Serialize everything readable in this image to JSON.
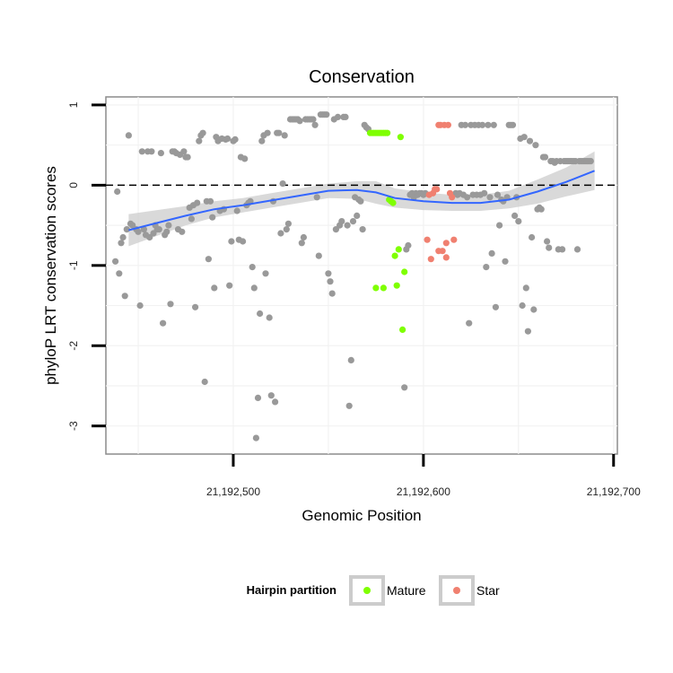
{
  "chart_data": {
    "type": "scatter",
    "title": "Conservation",
    "xlabel": "Genomic Position",
    "ylabel": "phyloP LRT conservation scores",
    "xlim": [
      21192433,
      21192702
    ],
    "ylim": [
      -3.35,
      1.1
    ],
    "x_ticks": [
      {
        "value": 21192500,
        "label": "21,192,500"
      },
      {
        "value": 21192600,
        "label": "21,192,600"
      },
      {
        "value": 21192700,
        "label": "21,192,700"
      }
    ],
    "y_ticks": [
      {
        "value": 1,
        "label": "1"
      },
      {
        "value": 0,
        "label": "0"
      },
      {
        "value": -1,
        "label": "-1"
      },
      {
        "value": -2,
        "label": "-2"
      },
      {
        "value": -3,
        "label": "-3"
      }
    ],
    "reference_line": {
      "y": 0,
      "style": "dashed"
    },
    "grid": true,
    "legend": {
      "title": "Hairpin partition",
      "position": "bottom",
      "entries": [
        {
          "label": "Mature",
          "color": "#7fff00"
        },
        {
          "label": "Star",
          "color": "#f08070"
        }
      ]
    },
    "colors": {
      "other": "#999999",
      "Mature": "#7fff00",
      "Star": "#f08070",
      "smooth_line": "#3366ff",
      "band": "#cccccc"
    },
    "series": [
      {
        "role": "other",
        "points": [
          [
            21192438,
            -0.95
          ],
          [
            21192439,
            -0.08
          ],
          [
            21192440,
            -1.1
          ],
          [
            21192441,
            -0.72
          ],
          [
            21192442,
            -0.65
          ],
          [
            21192443,
            -1.38
          ],
          [
            21192444,
            -0.55
          ],
          [
            21192445,
            0.62
          ],
          [
            21192446,
            -0.48
          ],
          [
            21192447,
            -0.5
          ],
          [
            21192449,
            -0.55
          ],
          [
            21192450,
            -0.58
          ],
          [
            21192451,
            -1.5
          ],
          [
            21192452,
            0.42
          ],
          [
            21192453,
            -0.55
          ],
          [
            21192454,
            -0.62
          ],
          [
            21192455,
            0.42
          ],
          [
            21192456,
            -0.65
          ],
          [
            21192457,
            0.42
          ],
          [
            21192458,
            -0.6
          ],
          [
            21192459,
            -0.5
          ],
          [
            21192460,
            -0.55
          ],
          [
            21192461,
            -0.55
          ],
          [
            21192462,
            0.4
          ],
          [
            21192463,
            -1.72
          ],
          [
            21192464,
            -0.62
          ],
          [
            21192465,
            -0.58
          ],
          [
            21192466,
            -0.5
          ],
          [
            21192467,
            -1.48
          ],
          [
            21192468,
            0.42
          ],
          [
            21192469,
            0.42
          ],
          [
            21192470,
            0.4
          ],
          [
            21192471,
            -0.55
          ],
          [
            21192472,
            0.38
          ],
          [
            21192473,
            -0.58
          ],
          [
            21192474,
            0.42
          ],
          [
            21192475,
            0.35
          ],
          [
            21192476,
            0.35
          ],
          [
            21192477,
            -0.28
          ],
          [
            21192478,
            -0.42
          ],
          [
            21192479,
            -0.25
          ],
          [
            21192480,
            -1.52
          ],
          [
            21192481,
            -0.22
          ],
          [
            21192482,
            0.55
          ],
          [
            21192483,
            0.62
          ],
          [
            21192484,
            0.65
          ],
          [
            21192485,
            -2.45
          ],
          [
            21192486,
            -0.2
          ],
          [
            21192487,
            -0.92
          ],
          [
            21192488,
            -0.2
          ],
          [
            21192489,
            -0.4
          ],
          [
            21192490,
            -1.28
          ],
          [
            21192491,
            0.6
          ],
          [
            21192492,
            0.55
          ],
          [
            21192493,
            -0.32
          ],
          [
            21192494,
            0.58
          ],
          [
            21192495,
            -0.3
          ],
          [
            21192496,
            0.57
          ],
          [
            21192497,
            0.58
          ],
          [
            21192498,
            -1.25
          ],
          [
            21192499,
            -0.7
          ],
          [
            21192500,
            0.55
          ],
          [
            21192501,
            0.57
          ],
          [
            21192502,
            -0.32
          ],
          [
            21192503,
            -0.68
          ],
          [
            21192504,
            0.35
          ],
          [
            21192505,
            -0.7
          ],
          [
            21192506,
            0.33
          ],
          [
            21192507,
            -0.25
          ],
          [
            21192508,
            -0.22
          ],
          [
            21192509,
            -0.2
          ],
          [
            21192510,
            -1.02
          ],
          [
            21192511,
            -1.28
          ],
          [
            21192512,
            -3.15
          ],
          [
            21192513,
            -2.65
          ],
          [
            21192514,
            -1.6
          ],
          [
            21192515,
            0.55
          ],
          [
            21192516,
            0.62
          ],
          [
            21192517,
            -1.1
          ],
          [
            21192518,
            0.65
          ],
          [
            21192519,
            -1.65
          ],
          [
            21192520,
            -2.62
          ],
          [
            21192521,
            -0.2
          ],
          [
            21192522,
            -2.7
          ],
          [
            21192523,
            0.65
          ],
          [
            21192524,
            0.65
          ],
          [
            21192525,
            -0.6
          ],
          [
            21192526,
            0.02
          ],
          [
            21192527,
            0.62
          ],
          [
            21192528,
            -0.55
          ],
          [
            21192529,
            -0.48
          ],
          [
            21192530,
            0.82
          ],
          [
            21192531,
            0.82
          ],
          [
            21192532,
            0.82
          ],
          [
            21192533,
            0.82
          ],
          [
            21192534,
            0.82
          ],
          [
            21192535,
            0.8
          ],
          [
            21192536,
            -0.72
          ],
          [
            21192537,
            -0.65
          ],
          [
            21192538,
            0.82
          ],
          [
            21192539,
            0.82
          ],
          [
            21192540,
            0.82
          ],
          [
            21192541,
            0.82
          ],
          [
            21192542,
            0.82
          ],
          [
            21192543,
            0.75
          ],
          [
            21192544,
            -0.15
          ],
          [
            21192545,
            -0.88
          ],
          [
            21192546,
            0.88
          ],
          [
            21192547,
            0.88
          ],
          [
            21192548,
            0.88
          ],
          [
            21192549,
            0.88
          ],
          [
            21192550,
            -1.1
          ],
          [
            21192551,
            -1.2
          ],
          [
            21192552,
            -1.35
          ],
          [
            21192553,
            0.82
          ],
          [
            21192554,
            -0.55
          ],
          [
            21192555,
            0.85
          ],
          [
            21192556,
            -0.5
          ],
          [
            21192557,
            -0.45
          ],
          [
            21192558,
            0.85
          ],
          [
            21192559,
            0.85
          ],
          [
            21192560,
            -0.5
          ],
          [
            21192561,
            -2.75
          ],
          [
            21192562,
            -2.18
          ],
          [
            21192563,
            -0.45
          ],
          [
            21192564,
            -0.15
          ],
          [
            21192565,
            -0.38
          ],
          [
            21192566,
            -0.18
          ],
          [
            21192567,
            -0.2
          ],
          [
            21192568,
            -0.55
          ],
          [
            21192569,
            0.75
          ],
          [
            21192570,
            0.72
          ],
          [
            21192571,
            0.7
          ],
          [
            21192590,
            -2.52
          ],
          [
            21192591,
            -0.8
          ],
          [
            21192592,
            -0.75
          ],
          [
            21192593,
            -0.12
          ],
          [
            21192594,
            -0.1
          ],
          [
            21192595,
            -0.15
          ],
          [
            21192596,
            -0.1
          ],
          [
            21192597,
            -0.12
          ],
          [
            21192598,
            -0.1
          ],
          [
            21192599,
            -0.1
          ],
          [
            21192600,
            -0.12
          ],
          [
            21192601,
            -0.1
          ],
          [
            21192617,
            -0.1
          ],
          [
            21192618,
            -0.12
          ],
          [
            21192619,
            -0.1
          ],
          [
            21192620,
            0.75
          ],
          [
            21192621,
            -0.12
          ],
          [
            21192622,
            0.75
          ],
          [
            21192623,
            -0.15
          ],
          [
            21192624,
            -1.72
          ],
          [
            21192625,
            0.75
          ],
          [
            21192626,
            -0.12
          ],
          [
            21192627,
            0.75
          ],
          [
            21192628,
            -0.12
          ],
          [
            21192629,
            0.75
          ],
          [
            21192630,
            -0.12
          ],
          [
            21192631,
            0.75
          ],
          [
            21192632,
            -0.1
          ],
          [
            21192633,
            -1.02
          ],
          [
            21192634,
            0.75
          ],
          [
            21192635,
            -0.15
          ],
          [
            21192636,
            -0.85
          ],
          [
            21192637,
            0.75
          ],
          [
            21192638,
            -1.52
          ],
          [
            21192639,
            -0.12
          ],
          [
            21192640,
            -0.5
          ],
          [
            21192641,
            -0.18
          ],
          [
            21192642,
            -0.2
          ],
          [
            21192643,
            -0.95
          ],
          [
            21192644,
            -0.15
          ],
          [
            21192645,
            0.75
          ],
          [
            21192646,
            0.75
          ],
          [
            21192647,
            0.75
          ],
          [
            21192648,
            -0.38
          ],
          [
            21192649,
            -0.15
          ],
          [
            21192650,
            -0.45
          ],
          [
            21192651,
            0.58
          ],
          [
            21192652,
            -1.5
          ],
          [
            21192653,
            0.6
          ],
          [
            21192654,
            -1.28
          ],
          [
            21192655,
            -1.82
          ],
          [
            21192656,
            0.55
          ],
          [
            21192657,
            -0.65
          ],
          [
            21192658,
            -1.55
          ],
          [
            21192659,
            0.5
          ],
          [
            21192660,
            -0.3
          ],
          [
            21192661,
            -0.28
          ],
          [
            21192662,
            -0.3
          ],
          [
            21192663,
            0.35
          ],
          [
            21192664,
            0.35
          ],
          [
            21192665,
            -0.7
          ],
          [
            21192666,
            -0.78
          ],
          [
            21192667,
            0.3
          ],
          [
            21192668,
            0.3
          ],
          [
            21192669,
            0.28
          ],
          [
            21192670,
            0.3
          ],
          [
            21192671,
            -0.8
          ],
          [
            21192672,
            0.3
          ],
          [
            21192673,
            -0.8
          ],
          [
            21192674,
            0.3
          ],
          [
            21192675,
            0.3
          ],
          [
            21192676,
            0.3
          ],
          [
            21192677,
            0.3
          ],
          [
            21192678,
            0.3
          ],
          [
            21192679,
            0.3
          ],
          [
            21192680,
            0.3
          ],
          [
            21192681,
            -0.8
          ],
          [
            21192682,
            0.3
          ],
          [
            21192683,
            0.3
          ],
          [
            21192684,
            0.3
          ],
          [
            21192685,
            0.3
          ],
          [
            21192686,
            0.3
          ],
          [
            21192687,
            0.3
          ],
          [
            21192688,
            0.3
          ]
        ]
      },
      {
        "role": "Mature",
        "name": "Mature",
        "points": [
          [
            21192572,
            0.65
          ],
          [
            21192573,
            0.65
          ],
          [
            21192574,
            0.65
          ],
          [
            21192575,
            0.65
          ],
          [
            21192576,
            0.65
          ],
          [
            21192577,
            0.65
          ],
          [
            21192578,
            0.65
          ],
          [
            21192579,
            0.65
          ],
          [
            21192580,
            0.65
          ],
          [
            21192581,
            0.65
          ],
          [
            21192582,
            -0.18
          ],
          [
            21192583,
            -0.2
          ],
          [
            21192584,
            -0.22
          ],
          [
            21192585,
            -0.88
          ],
          [
            21192586,
            -1.25
          ],
          [
            21192587,
            -0.8
          ],
          [
            21192588,
            0.6
          ],
          [
            21192589,
            -1.8
          ],
          [
            21192590,
            -1.08
          ],
          [
            21192575,
            -1.28
          ],
          [
            21192579,
            -1.28
          ]
        ]
      },
      {
        "role": "Star",
        "name": "Star",
        "points": [
          [
            21192602,
            -0.68
          ],
          [
            21192603,
            -0.12
          ],
          [
            21192604,
            -0.92
          ],
          [
            21192605,
            -0.1
          ],
          [
            21192606,
            -0.05
          ],
          [
            21192607,
            -0.05
          ],
          [
            21192608,
            0.75
          ],
          [
            21192609,
            0.75
          ],
          [
            21192610,
            -0.82
          ],
          [
            21192611,
            0.75
          ],
          [
            21192612,
            -0.9
          ],
          [
            21192613,
            0.75
          ],
          [
            21192614,
            -0.1
          ],
          [
            21192615,
            -0.15
          ],
          [
            21192616,
            -0.68
          ],
          [
            21192608,
            -0.82
          ],
          [
            21192612,
            -0.72
          ]
        ]
      }
    ],
    "smooth": {
      "x": [
        21192445,
        21192460,
        21192475,
        21192490,
        21192505,
        21192520,
        21192535,
        21192550,
        21192565,
        21192575,
        21192585,
        21192600,
        21192615,
        21192630,
        21192645,
        21192660,
        21192675,
        21192690
      ],
      "y": [
        -0.56,
        -0.47,
        -0.38,
        -0.3,
        -0.25,
        -0.19,
        -0.13,
        -0.07,
        -0.06,
        -0.09,
        -0.16,
        -0.2,
        -0.22,
        -0.22,
        -0.18,
        -0.08,
        0.04,
        0.18
      ],
      "ci_upper": [
        -0.36,
        -0.31,
        -0.26,
        -0.2,
        -0.16,
        -0.1,
        -0.04,
        0.02,
        0.05,
        0.05,
        -0.04,
        -0.09,
        -0.12,
        -0.12,
        -0.07,
        0.07,
        0.22,
        0.42
      ],
      "ci_lower": [
        -0.76,
        -0.63,
        -0.5,
        -0.4,
        -0.34,
        -0.28,
        -0.22,
        -0.16,
        -0.17,
        -0.23,
        -0.28,
        -0.31,
        -0.32,
        -0.32,
        -0.29,
        -0.23,
        -0.14,
        -0.06
      ]
    }
  }
}
